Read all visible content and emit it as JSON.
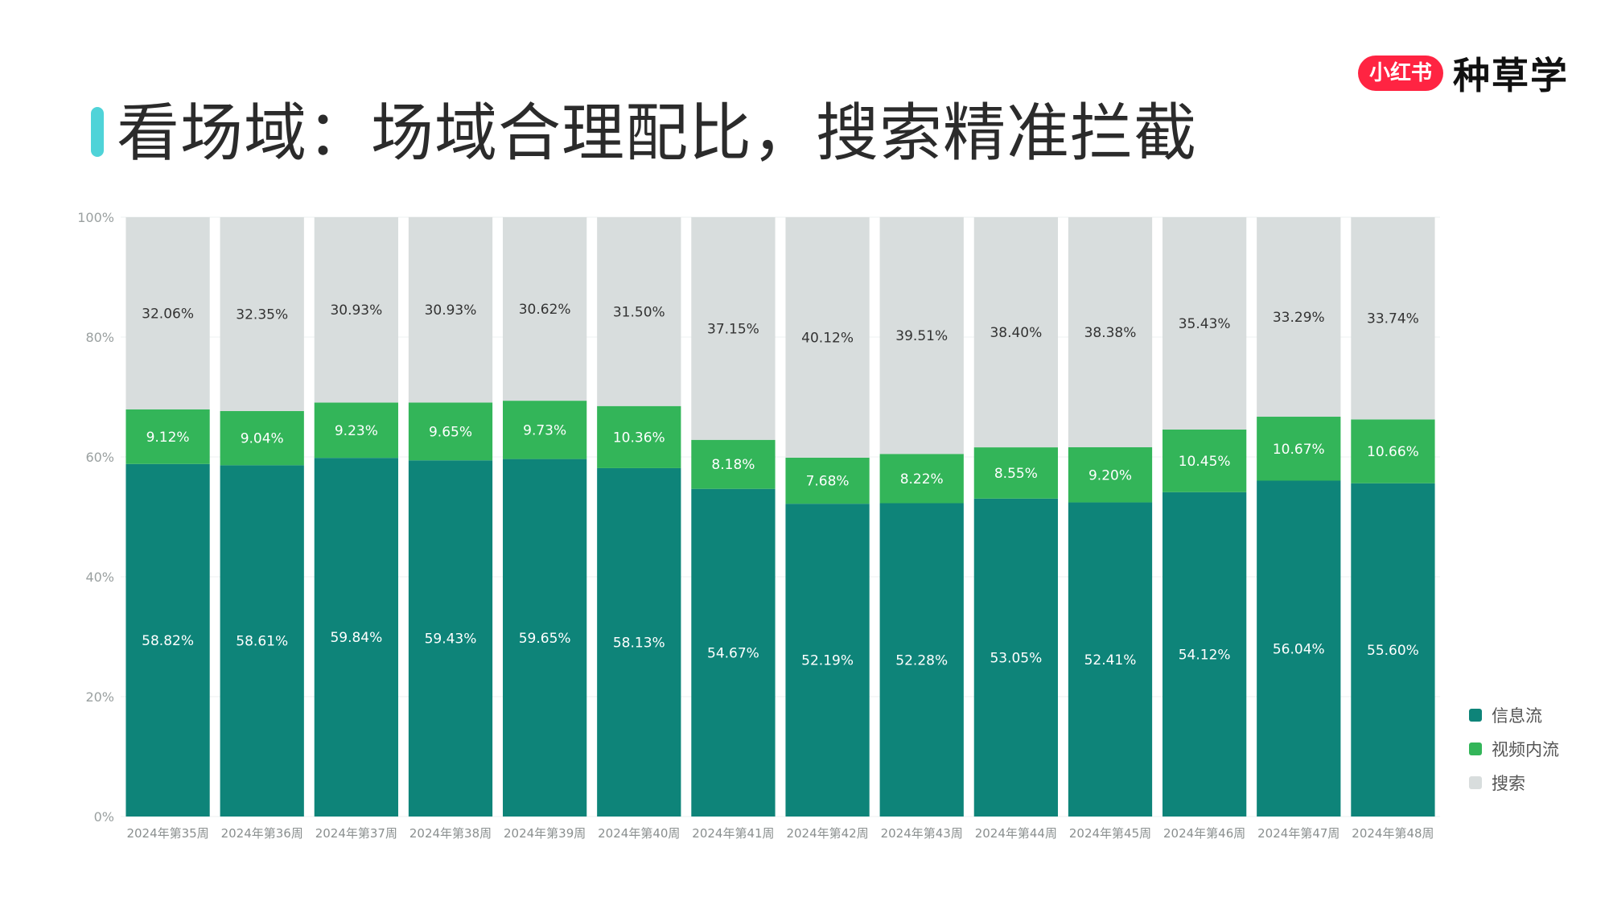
{
  "title": "看场域：场域合理配比，搜索精准拦截",
  "brand": {
    "badge": "小红书",
    "name": "种草学"
  },
  "colors": {
    "title_accent": "#4fd3d8",
    "brand": "#ff2442"
  },
  "chart_data": {
    "type": "bar",
    "stacked": "percent",
    "categories": [
      "2024年第35周",
      "2024年第36周",
      "2024年第37周",
      "2024年第38周",
      "2024年第39周",
      "2024年第40周",
      "2024年第41周",
      "2024年第42周",
      "2024年第43周",
      "2024年第44周",
      "2024年第45周",
      "2024年第46周",
      "2024年第47周",
      "2024年第48周"
    ],
    "series": [
      {
        "name": "信息流",
        "color": "#0e8479",
        "values": [
          58.82,
          58.61,
          59.84,
          59.43,
          59.65,
          58.13,
          54.67,
          52.19,
          52.28,
          53.05,
          52.41,
          54.12,
          56.04,
          55.6
        ],
        "labels": [
          "58.82%",
          "58.61%",
          "59.84%",
          "59.43%",
          "59.65%",
          "58.13%",
          "54.67%",
          "52.19%",
          "52.28%",
          "53.05%",
          "52.41%",
          "54.12%",
          "56.04%",
          "55.60%"
        ]
      },
      {
        "name": "视频内流",
        "color": "#33b559",
        "values": [
          9.12,
          9.04,
          9.23,
          9.65,
          9.73,
          10.36,
          8.18,
          7.68,
          8.22,
          8.55,
          9.2,
          10.45,
          10.67,
          10.66
        ],
        "labels": [
          "9.12%",
          "9.04%",
          "9.23%",
          "9.65%",
          "9.73%",
          "10.36%",
          "8.18%",
          "7.68%",
          "8.22%",
          "8.55%",
          "9.20%",
          "10.45%",
          "10.67%",
          "10.66%"
        ]
      },
      {
        "name": "搜索",
        "color": "#d8dddd",
        "values": [
          32.06,
          32.35,
          30.93,
          30.93,
          30.62,
          31.5,
          37.15,
          40.12,
          39.51,
          38.4,
          38.38,
          35.43,
          33.29,
          33.74
        ],
        "labels": [
          "32.06%",
          "32.35%",
          "30.93%",
          "30.93%",
          "30.62%",
          "31.50%",
          "37.15%",
          "40.12%",
          "39.51%",
          "38.40%",
          "38.38%",
          "35.43%",
          "33.29%",
          "33.74%"
        ]
      }
    ],
    "y_ticks": [
      "0%",
      "20%",
      "40%",
      "60%",
      "80%",
      "100%"
    ],
    "ylim": [
      0,
      100
    ],
    "legend_position": "bottom-right"
  }
}
